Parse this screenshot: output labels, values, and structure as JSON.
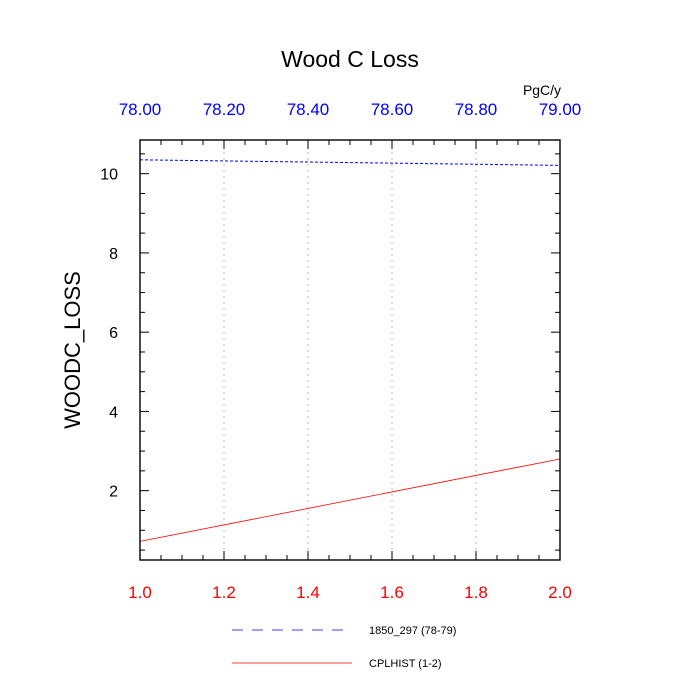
{
  "chart_data": {
    "type": "line",
    "title": "Wood C Loss",
    "ylabel": "WOODC_LOSS",
    "units": "PgC/y",
    "x_bottom": {
      "lim": [
        1.0,
        2.0
      ],
      "ticks": [
        1.0,
        1.2,
        1.4,
        1.6,
        1.8,
        2.0
      ],
      "tick_labels": [
        "1.0",
        "1.2",
        "1.4",
        "1.6",
        "1.8",
        "2.0"
      ],
      "color": "#ff0000"
    },
    "x_top": {
      "lim": [
        78.0,
        79.0
      ],
      "ticks": [
        78.0,
        78.2,
        78.4,
        78.6,
        78.8,
        79.0
      ],
      "tick_labels": [
        "78.00",
        "78.20",
        "78.40",
        "78.60",
        "78.80",
        "79.00"
      ],
      "color": "#0000ff"
    },
    "ylim": [
      0.25,
      10.85
    ],
    "y_ticks": [
      2,
      4,
      6,
      8,
      10
    ],
    "y_tick_labels": [
      "2",
      "4",
      "6",
      "8",
      "10"
    ],
    "grid": "vertical-dotted",
    "series": [
      {
        "name": "1850_297 (78-79)",
        "axis": "top",
        "x": [
          78.0,
          79.0
        ],
        "y": [
          10.35,
          10.21
        ],
        "color": "#0000ff",
        "style": "dashed"
      },
      {
        "name": "CPLHIST (1-2)",
        "axis": "bottom",
        "x": [
          1.0,
          2.0
        ],
        "y": [
          0.72,
          2.8
        ],
        "color": "#ff0000",
        "style": "solid"
      }
    ],
    "legend_position": "bottom-center"
  }
}
